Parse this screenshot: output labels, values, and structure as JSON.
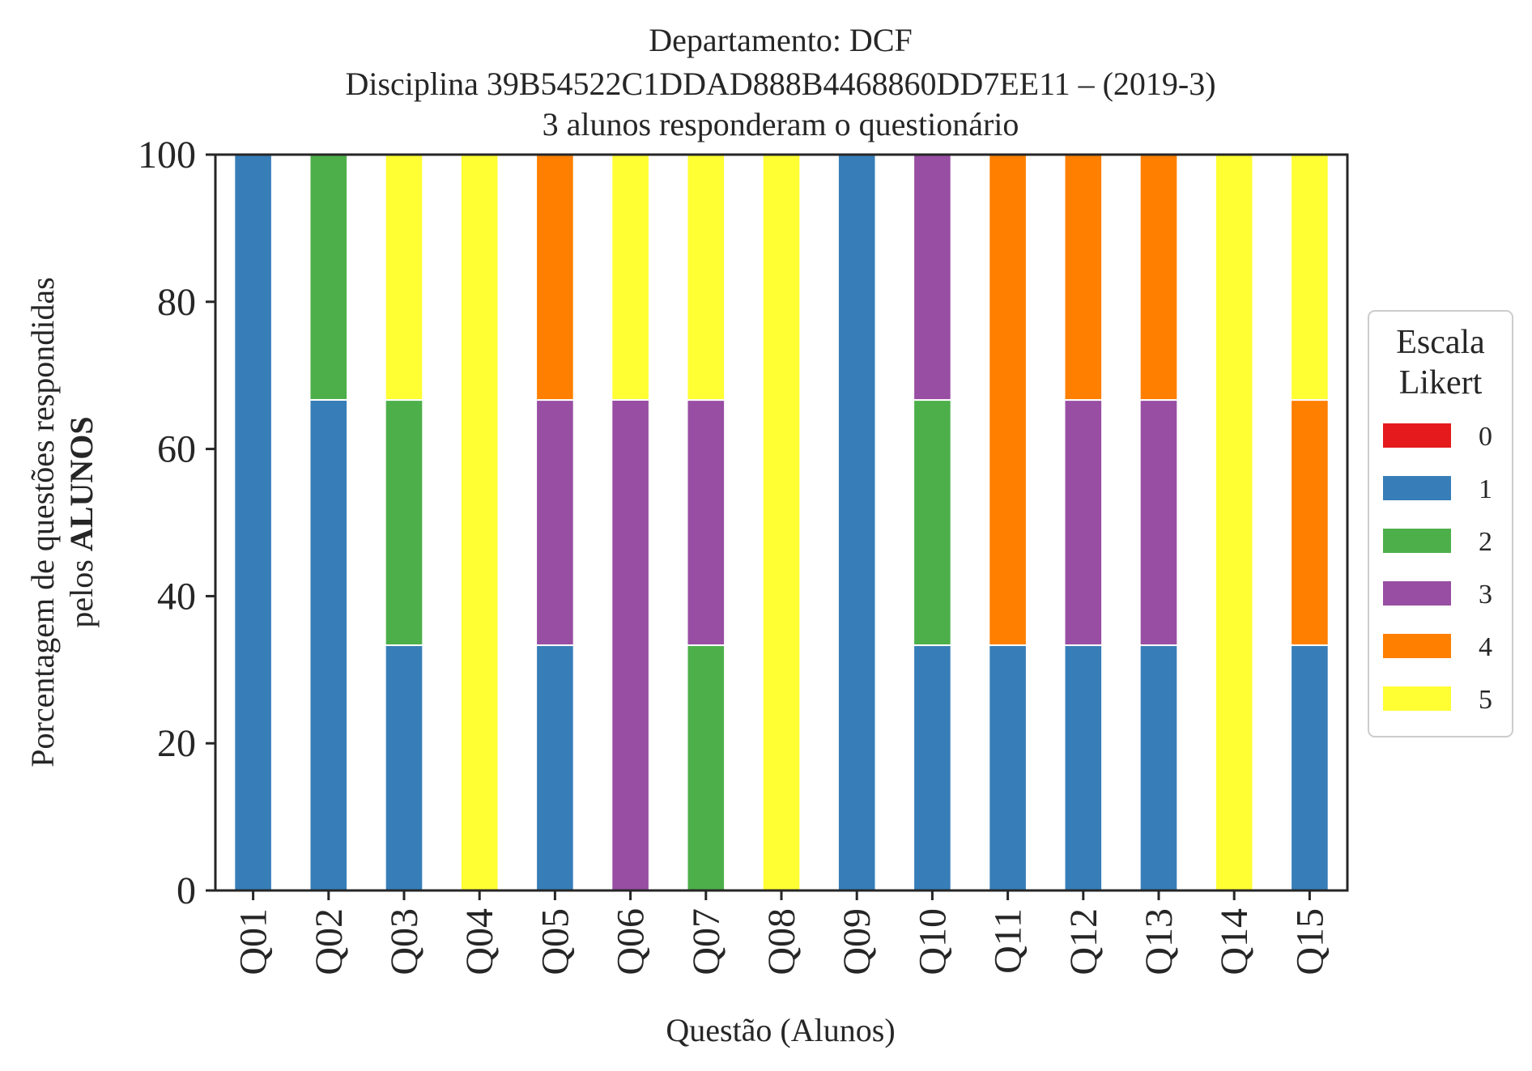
{
  "chart_data": {
    "type": "bar",
    "stacked": true,
    "title_lines": [
      "Departamento: DCF",
      "Disciplina 39B54522C1DDAD888B4468860DD7EE11 – (2019-3)",
      "3 alunos responderam o questionário"
    ],
    "xlabel": "Questão (Alunos)",
    "ylabel_line1": "Porcentagem de questões respondidas",
    "ylabel_line2_prefix": "pelos ",
    "ylabel_line2_bold": "ALUNOS",
    "ylim": [
      0,
      100
    ],
    "yticks": [
      "0",
      "20",
      "40",
      "60",
      "80",
      "100"
    ],
    "grid": false,
    "categories": [
      "Q01",
      "Q02",
      "Q03",
      "Q04",
      "Q05",
      "Q06",
      "Q07",
      "Q08",
      "Q09",
      "Q10",
      "Q11",
      "Q12",
      "Q13",
      "Q14",
      "Q15"
    ],
    "legend": {
      "title_line1": "Escala",
      "title_line2": "Likert",
      "position": "center-right"
    },
    "series": [
      {
        "name": "0",
        "color": "#e41a1c",
        "values": [
          0,
          0,
          0,
          0,
          0,
          0,
          0,
          0,
          0,
          0,
          0,
          0,
          0,
          0,
          0
        ]
      },
      {
        "name": "1",
        "color": "#377eb8",
        "values": [
          100,
          66.67,
          33.33,
          0,
          33.33,
          0,
          0,
          0,
          100,
          33.33,
          33.33,
          33.33,
          33.33,
          0,
          33.33
        ]
      },
      {
        "name": "2",
        "color": "#4daf4a",
        "values": [
          0,
          33.33,
          33.33,
          0,
          0,
          0,
          33.33,
          0,
          0,
          33.33,
          0,
          0,
          0,
          0,
          0
        ]
      },
      {
        "name": "3",
        "color": "#984ea3",
        "values": [
          0,
          0,
          0,
          0,
          33.33,
          66.67,
          33.33,
          0,
          0,
          33.33,
          0,
          33.33,
          33.33,
          0,
          0
        ]
      },
      {
        "name": "4",
        "color": "#ff7f00",
        "values": [
          0,
          0,
          0,
          0,
          33.33,
          0,
          0,
          0,
          0,
          0,
          66.67,
          33.33,
          33.33,
          0,
          33.33
        ]
      },
      {
        "name": "5",
        "color": "#ffff33",
        "values": [
          0,
          0,
          33.33,
          100,
          0,
          33.33,
          33.33,
          100,
          0,
          0,
          0,
          0,
          0,
          100,
          33.33
        ]
      }
    ]
  }
}
